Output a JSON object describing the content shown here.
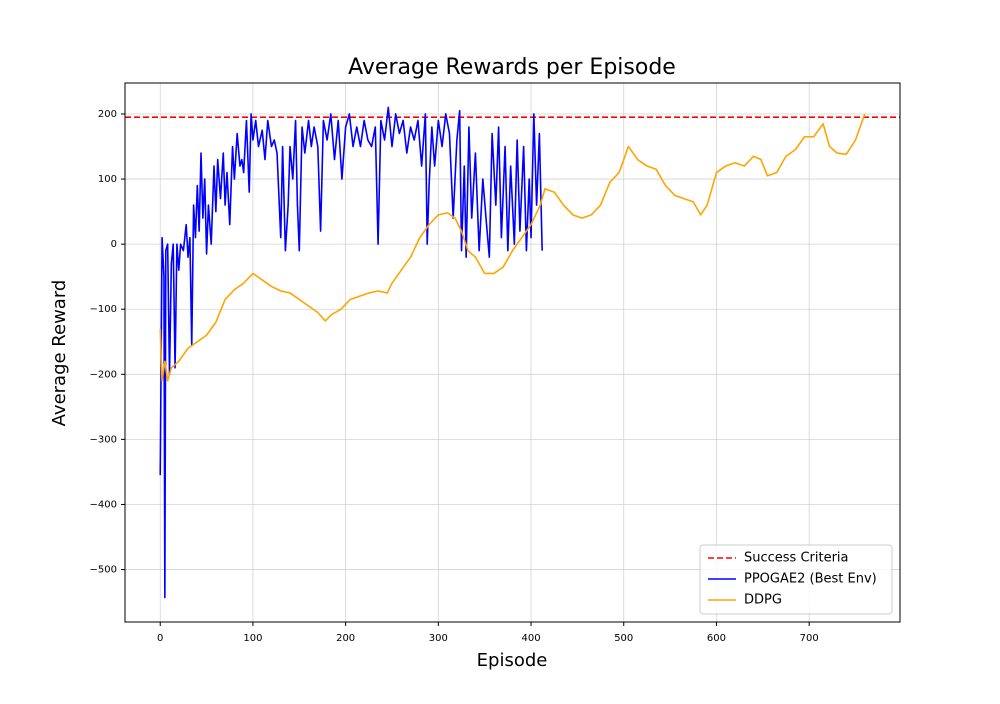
{
  "chart_data": {
    "type": "line",
    "title": "Average Rewards per Episode",
    "x_label": "Episode",
    "y_label": "Average Reward",
    "xlim": [
      -38,
      798
    ],
    "ylim": [
      -580.6,
      247.6
    ],
    "xticks": [
      0,
      100,
      200,
      300,
      400,
      500,
      600,
      700
    ],
    "yticks": [
      {
        "value": -500,
        "label": "−500"
      },
      {
        "value": -400,
        "label": "−400"
      },
      {
        "value": -300,
        "label": "−300"
      },
      {
        "value": -200,
        "label": "−200"
      },
      {
        "value": -100,
        "label": "−100"
      },
      0,
      100,
      200
    ],
    "grid": true,
    "legend": "lower right",
    "reference_lines": [
      {
        "name": "Success Criteria",
        "value": 195,
        "color": "#ff0000",
        "dashed": true
      }
    ],
    "series": [
      {
        "name": "PPOGAE2 (Best Env)",
        "color": "#0000ff",
        "x": [
          0,
          2,
          4,
          5,
          6,
          8,
          10,
          12,
          14,
          16,
          18,
          20,
          22,
          25,
          28,
          30,
          32,
          34,
          36,
          38,
          40,
          42,
          44,
          46,
          48,
          50,
          52,
          55,
          58,
          60,
          62,
          65,
          68,
          70,
          72,
          75,
          78,
          80,
          83,
          86,
          88,
          90,
          93,
          96,
          98,
          100,
          103,
          106,
          110,
          113,
          116,
          120,
          123,
          126,
          130,
          132,
          135,
          138,
          140,
          143,
          146,
          148,
          150,
          153,
          156,
          160,
          163,
          166,
          170,
          173,
          176,
          180,
          184,
          188,
          192,
          196,
          200,
          204,
          208,
          212,
          216,
          220,
          224,
          228,
          232,
          235,
          238,
          242,
          246,
          250,
          254,
          258,
          262,
          266,
          270,
          274,
          278,
          282,
          286,
          288,
          290,
          293,
          296,
          300,
          304,
          308,
          312,
          316,
          320,
          323,
          325,
          328,
          330,
          333,
          336,
          340,
          344,
          348,
          352,
          355,
          358,
          362,
          365,
          368,
          372,
          375,
          378,
          382,
          385,
          388,
          392,
          395,
          398,
          400,
          403,
          406,
          409,
          412
        ],
        "values": [
          -355,
          10,
          -50,
          -543,
          -10,
          0,
          -200,
          -30,
          0,
          -190,
          0,
          -40,
          0,
          -10,
          30,
          -20,
          10,
          -155,
          60,
          10,
          90,
          20,
          140,
          40,
          100,
          -15,
          60,
          0,
          120,
          50,
          130,
          70,
          140,
          60,
          110,
          30,
          150,
          100,
          170,
          120,
          130,
          110,
          190,
          80,
          200,
          160,
          190,
          150,
          175,
          130,
          190,
          150,
          160,
          140,
          10,
          150,
          -10,
          60,
          150,
          100,
          190,
          60,
          -10,
          180,
          140,
          190,
          150,
          180,
          150,
          20,
          190,
          160,
          200,
          130,
          190,
          100,
          180,
          200,
          150,
          180,
          150,
          190,
          160,
          150,
          180,
          0,
          190,
          160,
          210,
          150,
          200,
          170,
          190,
          140,
          180,
          160,
          190,
          120,
          200,
          0,
          90,
          180,
          120,
          190,
          150,
          200,
          170,
          40,
          160,
          205,
          -10,
          120,
          -20,
          180,
          40,
          140,
          -10,
          100,
          30,
          -20,
          170,
          60,
          180,
          10,
          150,
          -10,
          120,
          0,
          160,
          20,
          150,
          -10,
          100,
          10,
          200,
          60,
          170,
          -10
        ]
      },
      {
        "name": "DDPG",
        "color": "#ffa500",
        "x": [
          0,
          2,
          5,
          8,
          12,
          20,
          30,
          40,
          50,
          60,
          70,
          80,
          90,
          100,
          110,
          120,
          130,
          140,
          150,
          160,
          170,
          178,
          185,
          195,
          205,
          215,
          225,
          235,
          245,
          250,
          260,
          270,
          280,
          290,
          300,
          310,
          318,
          325,
          332,
          340,
          350,
          360,
          370,
          380,
          390,
          400,
          410,
          415,
          425,
          435,
          445,
          455,
          465,
          475,
          485,
          495,
          505,
          515,
          525,
          535,
          545,
          555,
          565,
          575,
          583,
          590,
          600,
          610,
          620,
          630,
          640,
          648,
          655,
          665,
          675,
          685,
          695,
          705,
          715,
          722,
          730,
          740,
          750,
          760
        ],
        "values": [
          -130,
          -210,
          -180,
          -210,
          -190,
          -180,
          -160,
          -150,
          -140,
          -120,
          -85,
          -70,
          -60,
          -45,
          -55,
          -65,
          -72,
          -75,
          -85,
          -95,
          -105,
          -118,
          -108,
          -100,
          -85,
          -80,
          -75,
          -72,
          -75,
          -60,
          -40,
          -20,
          10,
          30,
          45,
          48,
          40,
          20,
          -10,
          -20,
          -45,
          -45,
          -35,
          -10,
          10,
          30,
          60,
          85,
          80,
          60,
          45,
          40,
          45,
          60,
          95,
          110,
          150,
          130,
          120,
          115,
          90,
          75,
          70,
          65,
          45,
          60,
          110,
          120,
          125,
          120,
          135,
          130,
          105,
          110,
          135,
          145,
          165,
          165,
          185,
          150,
          140,
          138,
          160,
          200
        ]
      }
    ]
  }
}
